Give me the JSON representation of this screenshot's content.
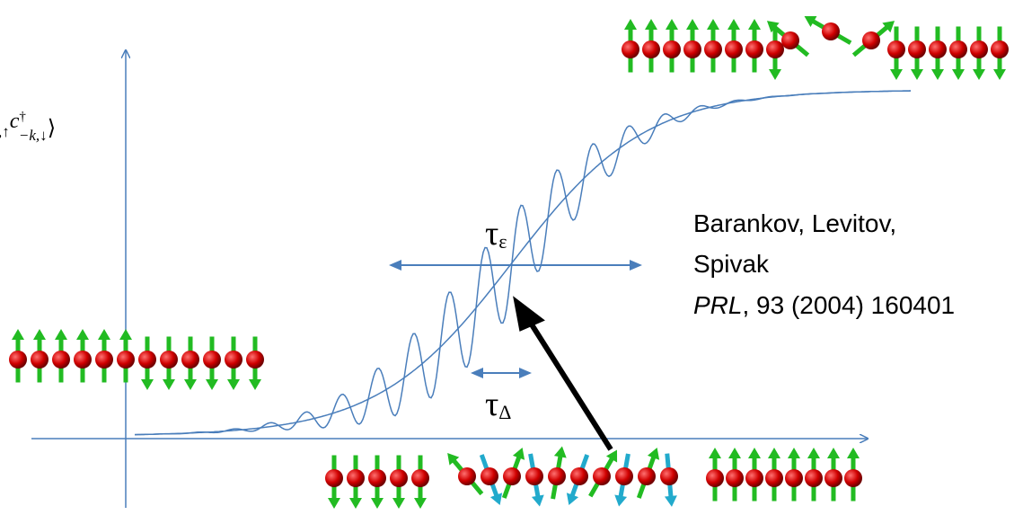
{
  "y_axis_label": {
    "parts": [
      ",↑",
      "c",
      "†",
      "−k,↓",
      "⟩"
    ]
  },
  "tau_epsilon": {
    "symbol": "τ",
    "subscript": "ε"
  },
  "tau_delta": {
    "symbol": "τ",
    "subscript": "Δ"
  },
  "citation": {
    "lines": [
      "Barankov, Levitov,",
      "Spivak"
    ],
    "journal": "PRL",
    "rest": ", 93 (2004) 160401"
  }
}
